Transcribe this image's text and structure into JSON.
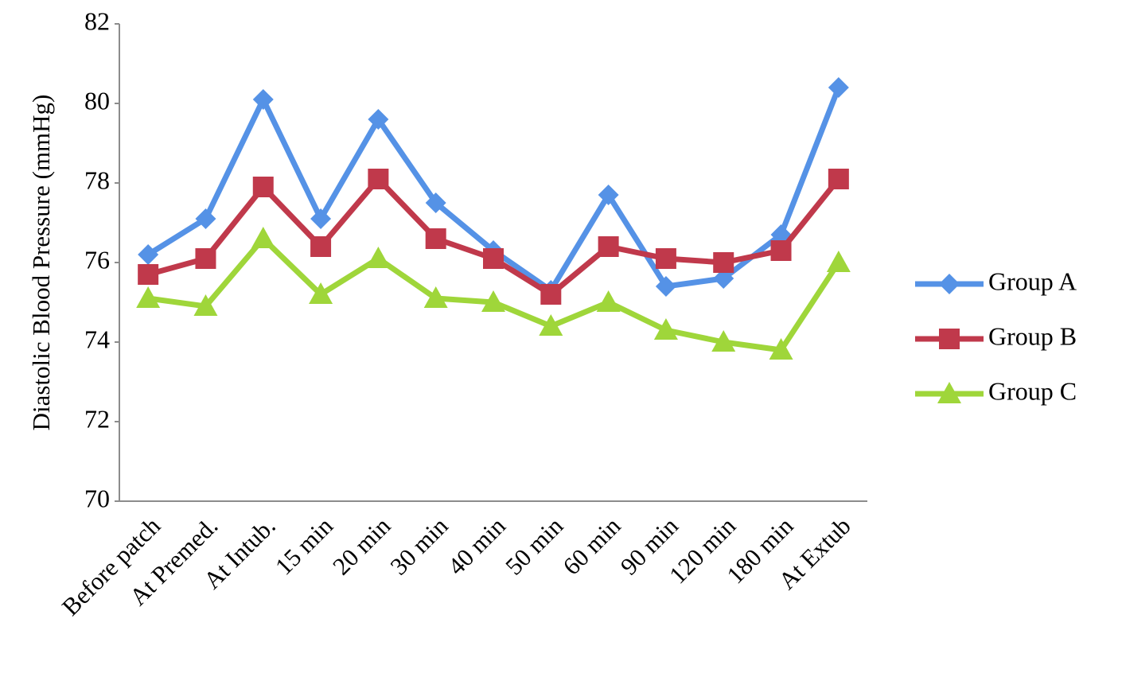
{
  "chart_data": {
    "type": "line",
    "y_label": "Diastolic Blood Pressure (mmHg)",
    "categories": [
      "Before patch",
      "At Premed.",
      "At Intub.",
      "15 min",
      "20 min",
      "30 min",
      "40 min",
      "50 min",
      "60 min",
      "90 min",
      "120 min",
      "180 min",
      "At Extub"
    ],
    "series": [
      {
        "name": "Group A",
        "color": "#5592e6",
        "marker": "diamond",
        "values": [
          76.2,
          77.1,
          80.1,
          77.1,
          79.6,
          77.5,
          76.3,
          75.3,
          77.7,
          75.4,
          75.6,
          76.7,
          80.4
        ]
      },
      {
        "name": "Group B",
        "color": "#c0394b",
        "marker": "square",
        "values": [
          75.7,
          76.1,
          77.9,
          76.4,
          78.1,
          76.6,
          76.1,
          75.2,
          76.4,
          76.1,
          76.0,
          76.3,
          78.1
        ]
      },
      {
        "name": "Group C",
        "color": "#9fd63a",
        "marker": "triangle",
        "values": [
          75.1,
          74.9,
          76.6,
          75.2,
          76.1,
          75.1,
          75.0,
          74.4,
          75.0,
          74.3,
          74.0,
          73.8,
          76.0
        ]
      }
    ],
    "ylim": [
      70,
      82
    ],
    "yticks": [
      70,
      72,
      74,
      76,
      78,
      80,
      82
    ],
    "grid": false,
    "legend": "right"
  }
}
